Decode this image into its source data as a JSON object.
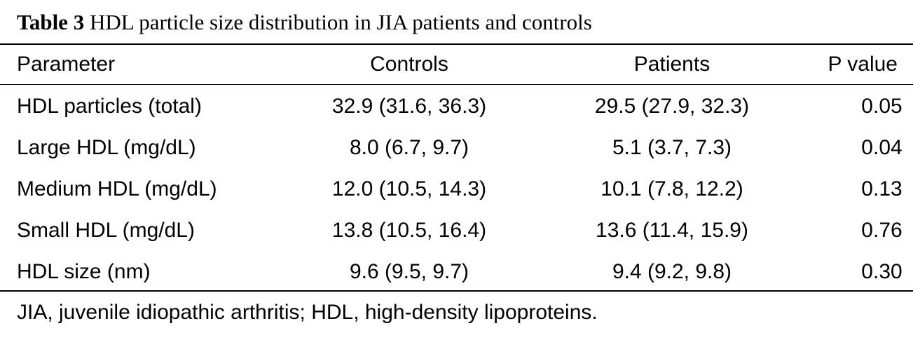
{
  "caption": {
    "label": "Table 3",
    "title": "HDL particle size distribution in JIA patients and controls"
  },
  "table": {
    "headers": {
      "parameter": "Parameter",
      "controls": "Controls",
      "patients": "Patients",
      "p_value": "P value"
    },
    "rows": [
      {
        "parameter": "HDL particles (total)",
        "controls": "32.9 (31.6, 36.3)",
        "patients": "29.5 (27.9, 32.3)",
        "p_value": "0.05"
      },
      {
        "parameter": "Large HDL (mg/dL)",
        "controls": "8.0 (6.7, 9.7)",
        "patients": "5.1 (3.7, 7.3)",
        "p_value": "0.04"
      },
      {
        "parameter": "Medium HDL (mg/dL)",
        "controls": "12.0 (10.5, 14.3)",
        "patients": "10.1 (7.8, 12.2)",
        "p_value": "0.13"
      },
      {
        "parameter": "Small HDL (mg/dL)",
        "controls": "13.8 (10.5, 16.4)",
        "patients": "13.6 (11.4, 15.9)",
        "p_value": "0.76"
      },
      {
        "parameter": "HDL size (nm)",
        "controls": "9.6 (9.5, 9.7)",
        "patients": "9.4 (9.2, 9.8)",
        "p_value": "0.30"
      }
    ]
  },
  "footnote": "JIA, juvenile idiopathic arthritis; HDL, high-density lipoproteins."
}
